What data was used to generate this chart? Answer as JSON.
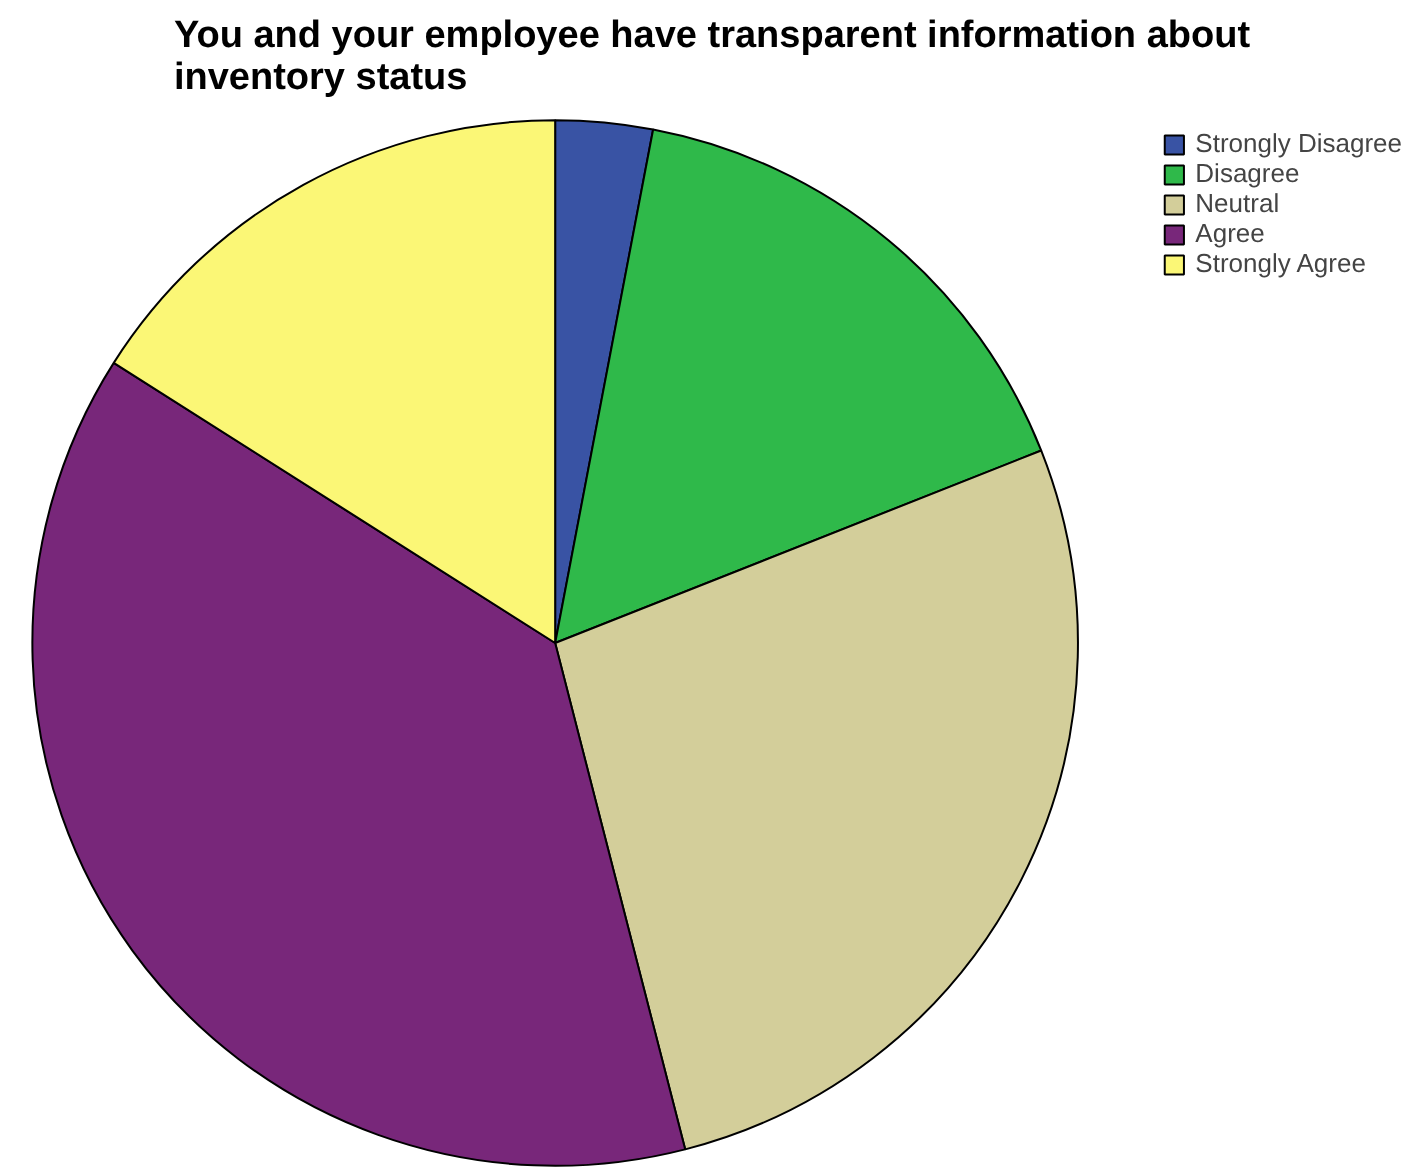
{
  "chart_data": {
    "type": "pie",
    "title": "You and your employee have transparent information about\ninventory status",
    "categories": [
      "Strongly Disagree",
      "Disagree",
      "Neutral",
      "Agree",
      "Strongly Agree"
    ],
    "values": [
      3,
      16,
      27,
      38,
      16
    ],
    "colors": [
      "#3953a4",
      "#2fb94a",
      "#d3ce9a",
      "#78277a",
      "#fbf776"
    ],
    "legend": "top right"
  }
}
